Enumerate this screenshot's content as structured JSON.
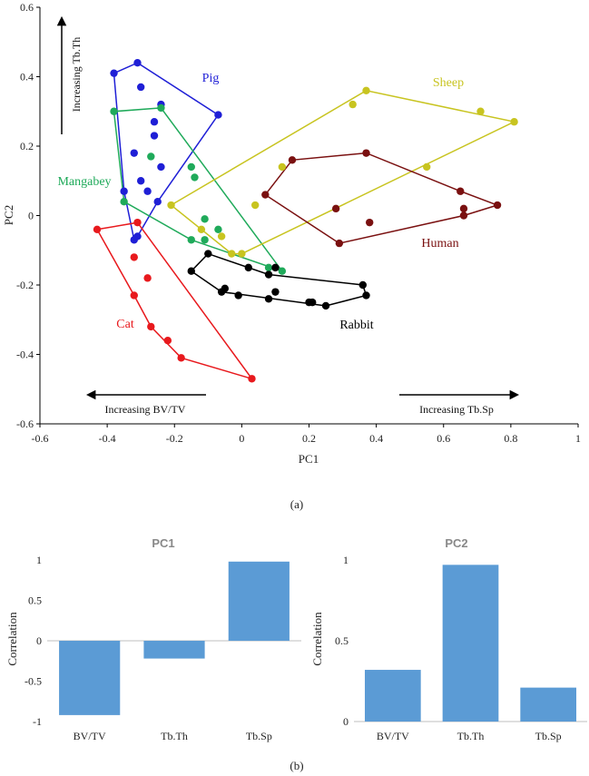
{
  "caption_a": "(a)",
  "caption_b": "(b)",
  "chart_data": [
    {
      "type": "scatter",
      "xlabel": "PC1",
      "ylabel": "PC2",
      "xlim": [
        -0.6,
        1
      ],
      "ylim": [
        -0.6,
        0.6
      ],
      "xticks": [
        "-0.6",
        "-0.4",
        "-0.2",
        "0",
        "0.2",
        "0.4",
        "0.6",
        "0.8",
        "1"
      ],
      "yticks": [
        "0.6",
        "0.4",
        "0.2",
        "0",
        "-0.2",
        "-0.4",
        "-0.6"
      ],
      "arrows": {
        "tbth": "Increasing Tb.Th",
        "bvtv": "Increasing BV/TV",
        "tbsp": "Increasing Tb.Sp"
      },
      "series": [
        {
          "name": "Pig",
          "color": "#1f1fd6",
          "hull": [
            [
              -0.38,
              0.41
            ],
            [
              -0.31,
              0.44
            ],
            [
              -0.07,
              0.29
            ],
            [
              -0.25,
              0.04
            ],
            [
              -0.31,
              -0.06
            ],
            [
              -0.32,
              -0.07
            ],
            [
              -0.35,
              0.07
            ]
          ],
          "points": [
            [
              -0.38,
              0.41
            ],
            [
              -0.31,
              0.44
            ],
            [
              -0.07,
              0.29
            ],
            [
              -0.3,
              0.37
            ],
            [
              -0.24,
              0.32
            ],
            [
              -0.26,
              0.27
            ],
            [
              -0.26,
              0.23
            ],
            [
              -0.32,
              0.18
            ],
            [
              -0.24,
              0.14
            ],
            [
              -0.3,
              0.1
            ],
            [
              -0.28,
              0.07
            ],
            [
              -0.35,
              0.07
            ],
            [
              -0.25,
              0.04
            ],
            [
              -0.31,
              -0.06
            ],
            [
              -0.32,
              -0.07
            ]
          ]
        },
        {
          "name": "Mangabey",
          "color": "#1faa5a",
          "hull": [
            [
              -0.38,
              0.3
            ],
            [
              -0.24,
              0.31
            ],
            [
              0.12,
              -0.16
            ],
            [
              -0.15,
              -0.07
            ],
            [
              -0.35,
              0.04
            ]
          ],
          "points": [
            [
              -0.38,
              0.3
            ],
            [
              -0.24,
              0.31
            ],
            [
              -0.27,
              0.17
            ],
            [
              -0.15,
              0.14
            ],
            [
              -0.14,
              0.11
            ],
            [
              -0.35,
              0.04
            ],
            [
              -0.11,
              -0.01
            ],
            [
              -0.07,
              -0.04
            ],
            [
              -0.15,
              -0.07
            ],
            [
              -0.11,
              -0.07
            ],
            [
              0.08,
              -0.15
            ],
            [
              0.12,
              -0.16
            ]
          ]
        },
        {
          "name": "Cat",
          "color": "#e8191d",
          "hull": [
            [
              -0.43,
              -0.04
            ],
            [
              -0.31,
              -0.02
            ],
            [
              0.03,
              -0.47
            ],
            [
              -0.18,
              -0.41
            ],
            [
              -0.27,
              -0.32
            ],
            [
              -0.32,
              -0.23
            ]
          ],
          "points": [
            [
              -0.43,
              -0.04
            ],
            [
              -0.31,
              -0.02
            ],
            [
              -0.32,
              -0.12
            ],
            [
              -0.28,
              -0.18
            ],
            [
              -0.32,
              -0.23
            ],
            [
              -0.27,
              -0.32
            ],
            [
              -0.22,
              -0.36
            ],
            [
              -0.18,
              -0.41
            ],
            [
              0.03,
              -0.47
            ]
          ]
        },
        {
          "name": "Rabbit",
          "color": "#000000",
          "hull": [
            [
              -0.15,
              -0.16
            ],
            [
              -0.1,
              -0.11
            ],
            [
              0.08,
              -0.17
            ],
            [
              0.36,
              -0.2
            ],
            [
              0.37,
              -0.23
            ],
            [
              0.25,
              -0.26
            ],
            [
              -0.06,
              -0.22
            ]
          ],
          "points": [
            [
              -0.15,
              -0.16
            ],
            [
              -0.1,
              -0.11
            ],
            [
              -0.06,
              -0.22
            ],
            [
              -0.05,
              -0.21
            ],
            [
              -0.01,
              -0.23
            ],
            [
              0.02,
              -0.15
            ],
            [
              0.08,
              -0.17
            ],
            [
              0.1,
              -0.15
            ],
            [
              0.08,
              -0.24
            ],
            [
              0.1,
              -0.22
            ],
            [
              0.2,
              -0.25
            ],
            [
              0.21,
              -0.25
            ],
            [
              0.25,
              -0.26
            ],
            [
              0.36,
              -0.2
            ],
            [
              0.37,
              -0.23
            ]
          ]
        },
        {
          "name": "Sheep",
          "color": "#c8c420",
          "hull": [
            [
              -0.21,
              0.03
            ],
            [
              0.37,
              0.36
            ],
            [
              0.81,
              0.27
            ],
            [
              0.0,
              -0.11
            ],
            [
              -0.03,
              -0.11
            ]
          ],
          "points": [
            [
              -0.21,
              0.03
            ],
            [
              0.37,
              0.36
            ],
            [
              0.81,
              0.27
            ],
            [
              0.33,
              0.32
            ],
            [
              0.71,
              0.3
            ],
            [
              0.55,
              0.14
            ],
            [
              0.12,
              0.14
            ],
            [
              0.04,
              0.03
            ],
            [
              -0.12,
              -0.04
            ],
            [
              -0.06,
              -0.06
            ],
            [
              -0.03,
              -0.11
            ],
            [
              0.0,
              -0.11
            ]
          ]
        },
        {
          "name": "Human",
          "color": "#7a1010",
          "hull": [
            [
              0.07,
              0.06
            ],
            [
              0.15,
              0.16
            ],
            [
              0.37,
              0.18
            ],
            [
              0.65,
              0.07
            ],
            [
              0.76,
              0.03
            ],
            [
              0.66,
              0.0
            ],
            [
              0.29,
              -0.08
            ]
          ],
          "points": [
            [
              0.07,
              0.06
            ],
            [
              0.15,
              0.16
            ],
            [
              0.37,
              0.18
            ],
            [
              0.65,
              0.07
            ],
            [
              0.76,
              0.03
            ],
            [
              0.66,
              0.02
            ],
            [
              0.66,
              0.0
            ],
            [
              0.28,
              0.02
            ],
            [
              0.38,
              -0.02
            ],
            [
              0.29,
              -0.08
            ]
          ]
        }
      ]
    },
    {
      "type": "bar",
      "title": "PC1",
      "ylabel": "Correlation",
      "categories": [
        "BV/TV",
        "Tb.Th",
        "Tb.Sp"
      ],
      "values": [
        -0.92,
        -0.22,
        0.98
      ],
      "ylim": [
        -1,
        1
      ],
      "yticks": [
        "1",
        "0.5",
        "0",
        "-0.5",
        "-1"
      ],
      "color": "#5b9bd5"
    },
    {
      "type": "bar",
      "title": "PC2",
      "ylabel": "Correlation",
      "categories": [
        "BV/TV",
        "Tb.Th",
        "Tb.Sp"
      ],
      "values": [
        0.32,
        0.97,
        0.21
      ],
      "ylim": [
        0,
        1
      ],
      "yticks": [
        "1",
        "0.5",
        "0"
      ],
      "color": "#5b9bd5"
    }
  ]
}
